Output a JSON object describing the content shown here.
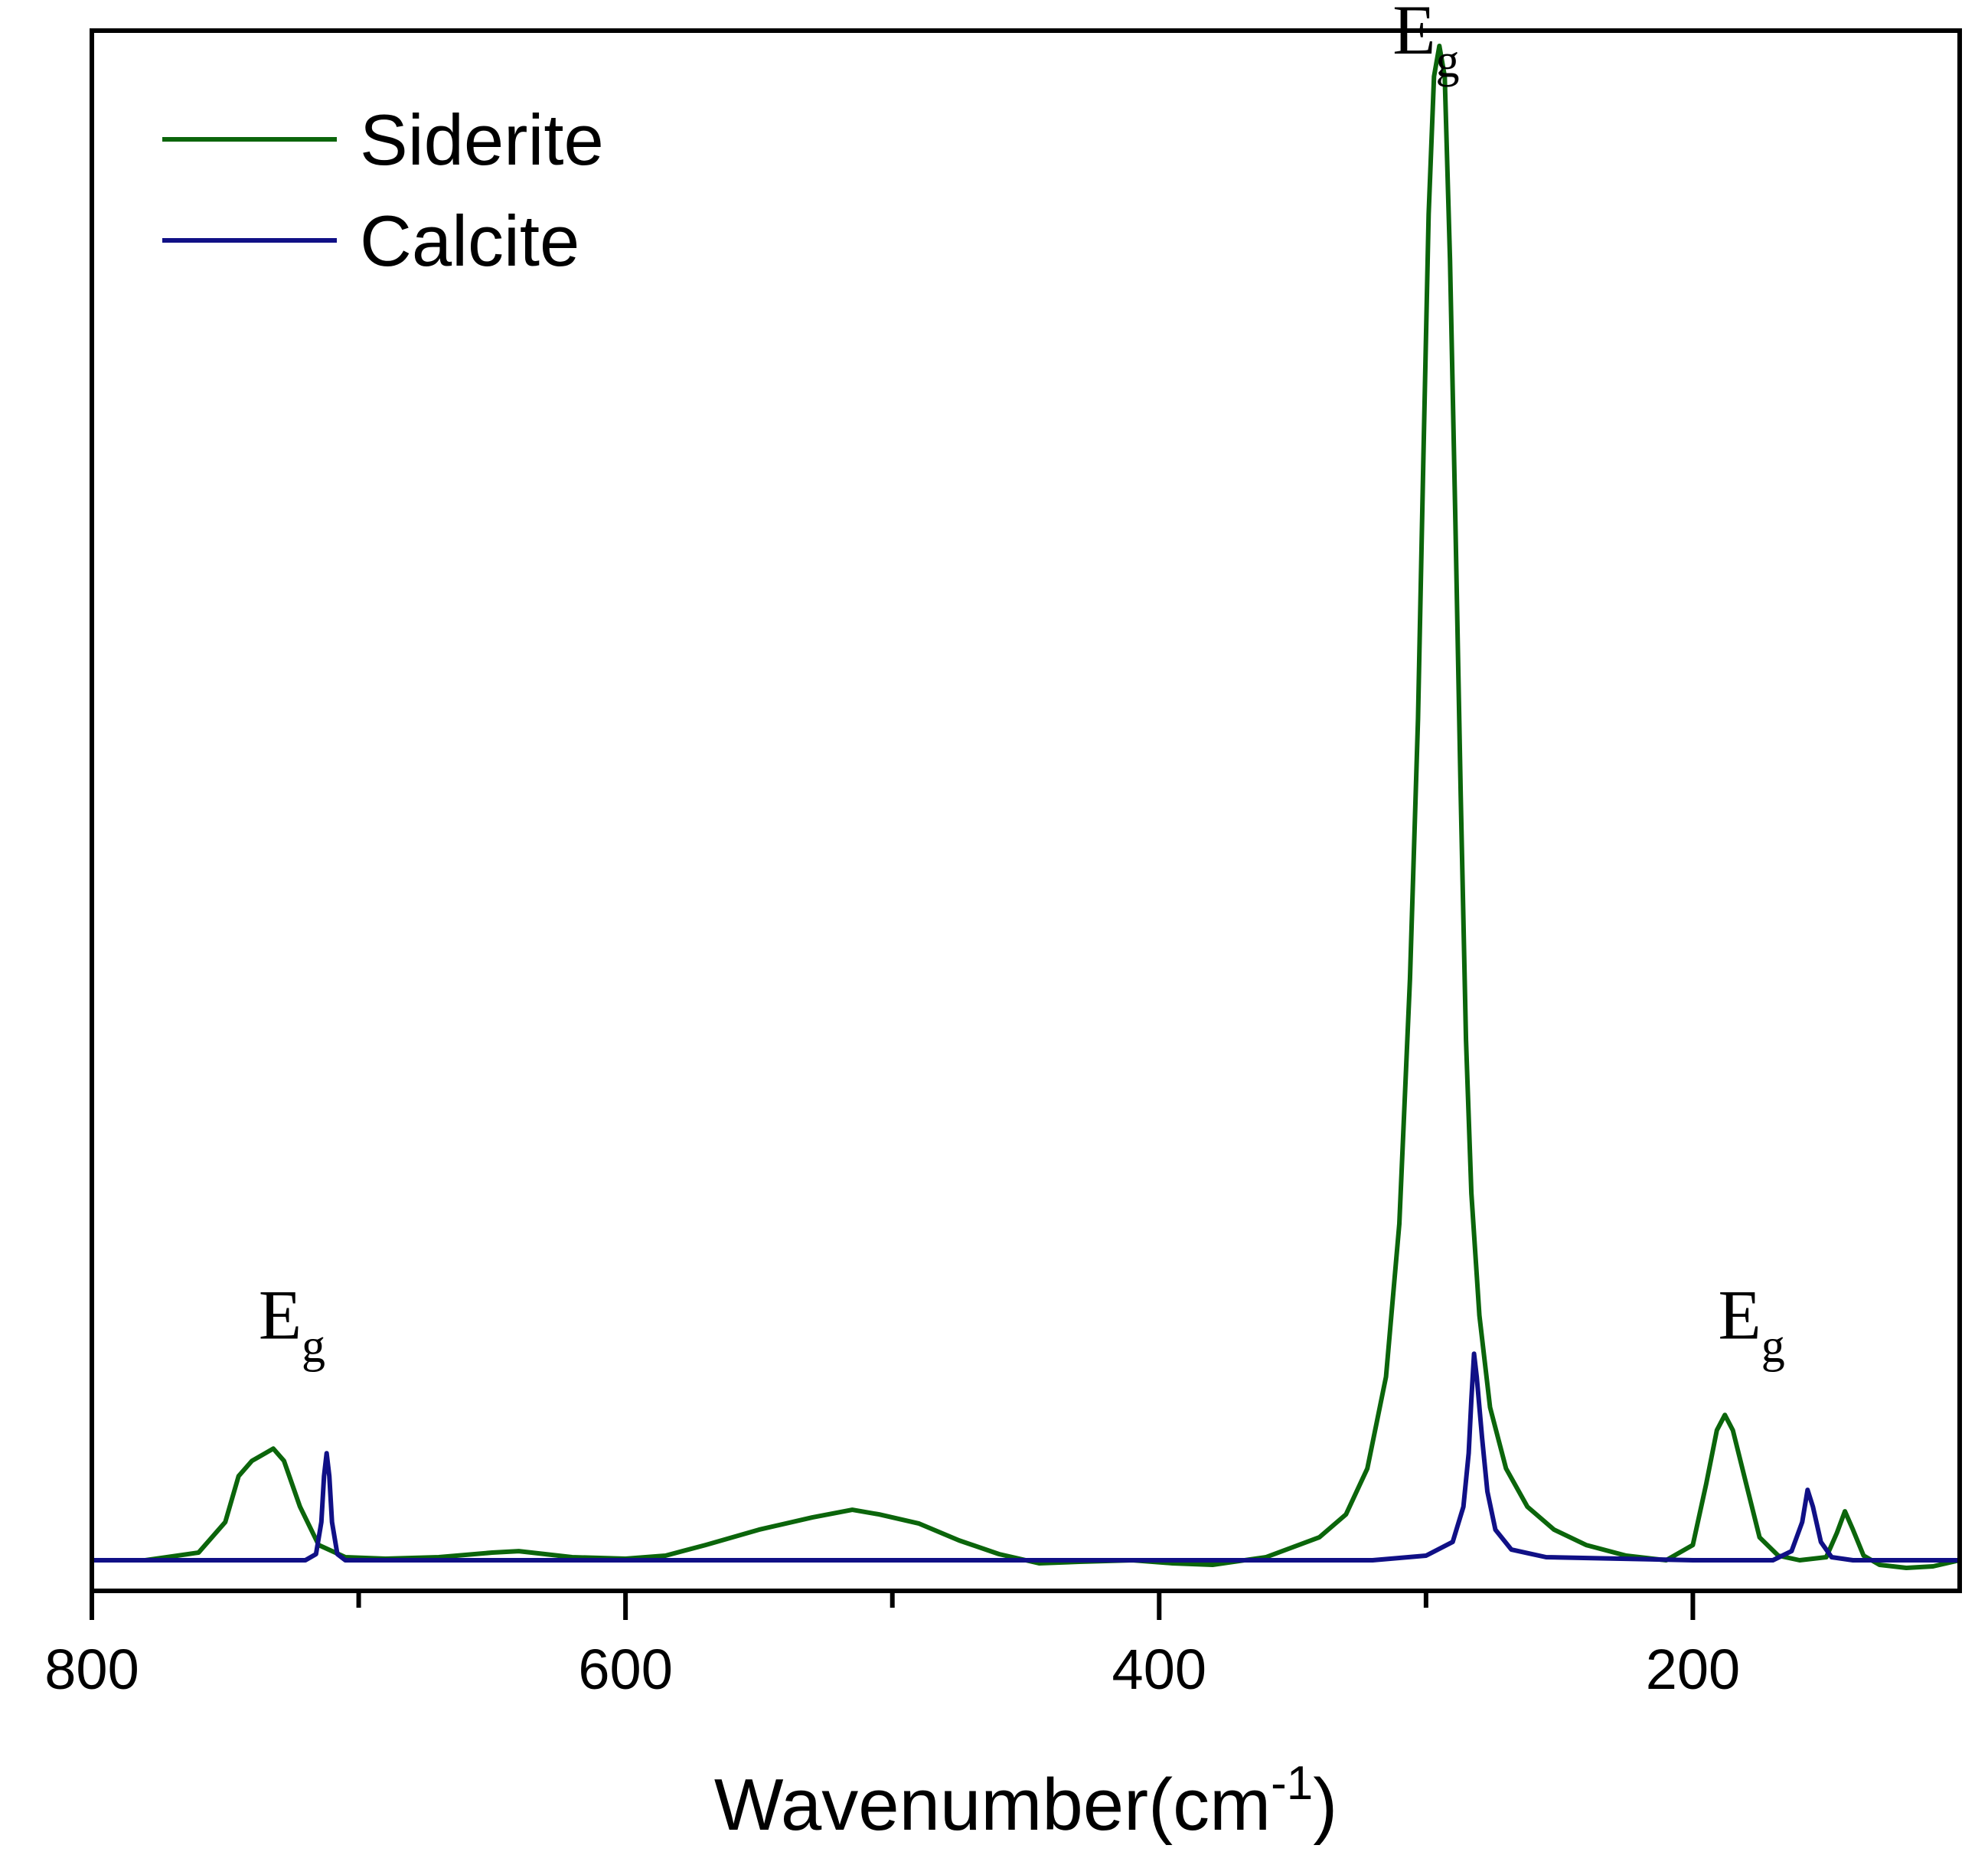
{
  "chart_data": {
    "type": "line",
    "title": "",
    "xlabel": "Wavenumber(cm",
    "xlabel_sup": "-1",
    "xlabel_close": ")",
    "ylabel": "",
    "xlim": [
      800,
      100
    ],
    "ylim": [
      -2,
      100
    ],
    "x_reversed": true,
    "x_ticks": [
      800,
      600,
      400,
      200
    ],
    "x_tick_labels": [
      "800",
      "600",
      "400",
      "200"
    ],
    "x_minor_ticks": [
      700,
      500,
      300
    ],
    "grid": false,
    "legend_position": "top-left",
    "series": [
      {
        "name": "Siderite",
        "color": "#0b650b",
        "points": [
          [
            800,
            0
          ],
          [
            780,
            0
          ],
          [
            760,
            0.5
          ],
          [
            750,
            2.5
          ],
          [
            745,
            5.5
          ],
          [
            740,
            6.5
          ],
          [
            735,
            7.0
          ],
          [
            732,
            7.3
          ],
          [
            728,
            6.5
          ],
          [
            722,
            3.5
          ],
          [
            715,
            1.0
          ],
          [
            705,
            0.2
          ],
          [
            690,
            0.1
          ],
          [
            670,
            0.2
          ],
          [
            650,
            0.5
          ],
          [
            640,
            0.6
          ],
          [
            620,
            0.2
          ],
          [
            600,
            0.1
          ],
          [
            585,
            0.3
          ],
          [
            570,
            1.0
          ],
          [
            550,
            2.0
          ],
          [
            530,
            2.8
          ],
          [
            515,
            3.3
          ],
          [
            505,
            3.0
          ],
          [
            490,
            2.4
          ],
          [
            475,
            1.3
          ],
          [
            460,
            0.4
          ],
          [
            445,
            -0.2
          ],
          [
            430,
            -0.1
          ],
          [
            410,
            0
          ],
          [
            395,
            -0.2
          ],
          [
            380,
            -0.3
          ],
          [
            360,
            0.2
          ],
          [
            340,
            1.5
          ],
          [
            330,
            3.0
          ],
          [
            322,
            6.0
          ],
          [
            315,
            12.0
          ],
          [
            310,
            22.0
          ],
          [
            306,
            38.0
          ],
          [
            303,
            55.0
          ],
          [
            301,
            72.0
          ],
          [
            299,
            88.0
          ],
          [
            297,
            97.0
          ],
          [
            295,
            99.0
          ],
          [
            293,
            97.0
          ],
          [
            291,
            85.0
          ],
          [
            289,
            68.0
          ],
          [
            287,
            50.0
          ],
          [
            285,
            34.0
          ],
          [
            283,
            24.0
          ],
          [
            280,
            16.0
          ],
          [
            276,
            10.0
          ],
          [
            270,
            6.0
          ],
          [
            262,
            3.5
          ],
          [
            252,
            2.0
          ],
          [
            240,
            1.0
          ],
          [
            225,
            0.3
          ],
          [
            210,
            0
          ],
          [
            200,
            1.0
          ],
          [
            195,
            5.0
          ],
          [
            191,
            8.5
          ],
          [
            188,
            9.5
          ],
          [
            185,
            8.5
          ],
          [
            180,
            5.0
          ],
          [
            175,
            1.5
          ],
          [
            168,
            0.3
          ],
          [
            160,
            0
          ],
          [
            150,
            0.2
          ],
          [
            146,
            1.8
          ],
          [
            143,
            3.2
          ],
          [
            140,
            2.0
          ],
          [
            136,
            0.3
          ],
          [
            130,
            -0.3
          ],
          [
            120,
            -0.5
          ],
          [
            110,
            -0.4
          ],
          [
            100,
            0
          ]
        ]
      },
      {
        "name": "Calcite",
        "color": "#101086",
        "points": [
          [
            800,
            0
          ],
          [
            720,
            0
          ],
          [
            716,
            0.4
          ],
          [
            714,
            2.5
          ],
          [
            713,
            5.5
          ],
          [
            712,
            7.0
          ],
          [
            711,
            5.5
          ],
          [
            710,
            2.5
          ],
          [
            708,
            0.4
          ],
          [
            705,
            0
          ],
          [
            320,
            0
          ],
          [
            300,
            0.3
          ],
          [
            290,
            1.2
          ],
          [
            286,
            3.5
          ],
          [
            284,
            7.0
          ],
          [
            283,
            10.5
          ],
          [
            282,
            13.5
          ],
          [
            281,
            12.0
          ],
          [
            279,
            8.0
          ],
          [
            277,
            4.5
          ],
          [
            274,
            2.0
          ],
          [
            268,
            0.7
          ],
          [
            255,
            0.2
          ],
          [
            200,
            0
          ],
          [
            170,
            0
          ],
          [
            163,
            0.6
          ],
          [
            159,
            2.5
          ],
          [
            157,
            4.6
          ],
          [
            155,
            3.5
          ],
          [
            152,
            1.2
          ],
          [
            148,
            0.2
          ],
          [
            140,
            0
          ],
          [
            100,
            0
          ]
        ]
      }
    ],
    "annotations": [
      {
        "text": "E",
        "sub": "g",
        "x": 725,
        "y": 14.5
      },
      {
        "text": "E",
        "sub": "g",
        "x": 300,
        "y": 98.5
      },
      {
        "text": "E",
        "sub": "g",
        "x": 178,
        "y": 14.5
      }
    ]
  }
}
